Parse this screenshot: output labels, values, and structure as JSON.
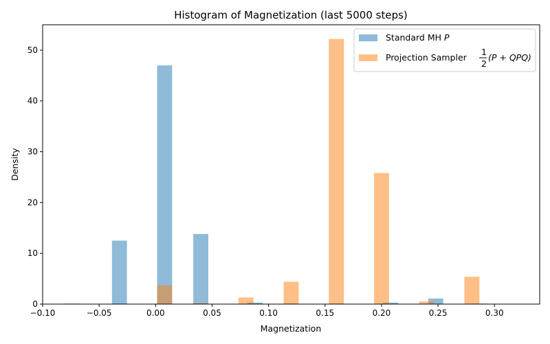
{
  "chart_data": {
    "type": "bar",
    "title": "Histogram of Magnetization (last 5000 steps)",
    "xlabel": "Magnetization",
    "ylabel": "Density",
    "xlim": [
      -0.1,
      0.34
    ],
    "ylim": [
      0,
      55
    ],
    "xticks": [
      -0.1,
      -0.05,
      0.0,
      0.05,
      0.1,
      0.15,
      0.2,
      0.25,
      0.3
    ],
    "xtick_labels": [
      "−0.10",
      "−0.05",
      "0.00",
      "0.05",
      "0.10",
      "0.15",
      "0.20",
      "0.25",
      "0.30"
    ],
    "yticks": [
      0,
      10,
      20,
      30,
      40,
      50
    ],
    "ytick_labels": [
      "0",
      "10",
      "20",
      "30",
      "40",
      "50"
    ],
    "grid": false,
    "legend_position": "top-right",
    "bar_width": 0.0133,
    "series": [
      {
        "name": "Standard MH P",
        "legend_text": "Standard MH ",
        "legend_math": "P",
        "color": "#1f77b4",
        "opacity": 0.5,
        "x": [
          -0.074,
          -0.032,
          0.008,
          0.04,
          0.088,
          0.12,
          0.16,
          0.208,
          0.248,
          0.288
        ],
        "values": [
          0.1,
          12.5,
          47.0,
          13.8,
          0.3,
          0.1,
          0.1,
          0.3,
          1.1,
          0.1
        ]
      },
      {
        "name": "Projection Sampler 1/2(P + QPQ)",
        "legend_text": "Projection Sampler ",
        "legend_math_num": "1",
        "legend_math_den": "2",
        "legend_math_tail": "(P + QPQ)",
        "color": "#ff7f0e",
        "opacity": 0.5,
        "x": [
          0.008,
          0.04,
          0.08,
          0.12,
          0.16,
          0.2,
          0.24,
          0.28
        ],
        "values": [
          3.7,
          0.2,
          1.3,
          4.4,
          52.2,
          25.8,
          0.5,
          5.4
        ]
      }
    ]
  }
}
